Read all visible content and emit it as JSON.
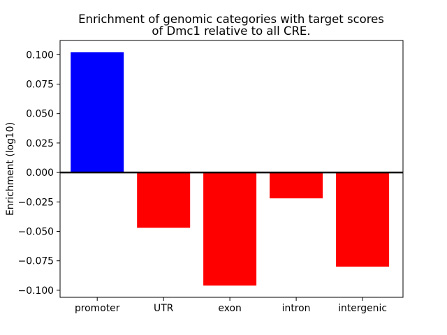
{
  "figure": {
    "background_color": "#ffffff"
  },
  "chart_data": {
    "type": "bar",
    "title": "Enrichment of genomic categories with target scores\nof Dmc1 relative to all CRE.",
    "title_lines": [
      "Enrichment of genomic categories with target scores",
      "of Dmc1 relative to all CRE."
    ],
    "ylabel": "Enrichment (log10)",
    "xlabel": "",
    "categories": [
      "promoter",
      "UTR",
      "exon",
      "intron",
      "intergenic"
    ],
    "values": [
      0.102,
      -0.047,
      -0.096,
      -0.022,
      -0.08
    ],
    "bar_colors": [
      "#0000ff",
      "#ff0000",
      "#ff0000",
      "#ff0000",
      "#ff0000"
    ],
    "positive_color": "#0000ff",
    "negative_color": "#ff0000",
    "bar_width_units": 0.8,
    "yticks": [
      0.1,
      0.075,
      0.05,
      0.025,
      0.0,
      -0.025,
      -0.05,
      -0.075,
      -0.1
    ],
    "ytick_labels": [
      "0.100",
      "0.075",
      "0.050",
      "0.025",
      "0.000",
      "−0.025",
      "−0.050",
      "−0.075",
      "−0.100"
    ],
    "ylim": [
      -0.106,
      0.112
    ],
    "xlim": [
      -0.56,
      4.61
    ],
    "zero_line": true,
    "zero_line_color": "#000000",
    "grid": false,
    "legend": null
  }
}
